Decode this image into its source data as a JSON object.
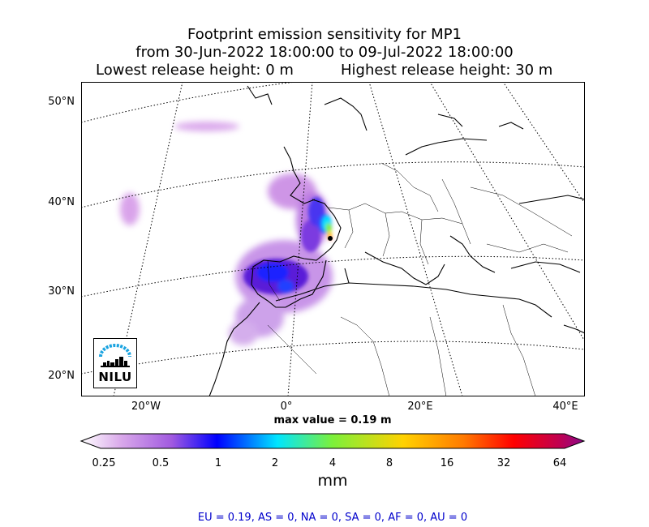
{
  "title": {
    "line1": "Footprint emission sensitivity for MP1",
    "line2": "from 30-Jun-2022 18:00:00 to 09-Jul-2022 18:00:00",
    "lowest": "Lowest release height: 0 m",
    "highest": "Highest release height: 30 m"
  },
  "axes": {
    "lat_labels": [
      "50°N",
      "40°N",
      "30°N",
      "20°N"
    ],
    "lon_labels": [
      "20°W",
      "0°",
      "20°E",
      "40°E"
    ]
  },
  "max_value": "max value = 0.19 m",
  "colorbar": {
    "ticks": [
      "0.25",
      "0.5",
      "1",
      "2",
      "4",
      "8",
      "16",
      "32",
      "64"
    ],
    "unit": "mm",
    "colors": [
      "#ffffff",
      "#c27fde",
      "#6a1fd8",
      "#0000ff",
      "#00e5ff",
      "#6cf03c",
      "#ffd200",
      "#ff7a00",
      "#ff0000",
      "#8b0a8b"
    ]
  },
  "summary": "EU = 0.19,  AS = 0,  NA = 0,  SA = 0,  AF = 0,  AU = 0",
  "logo": {
    "text": "NILU",
    "color": "#1aa3e0"
  }
}
